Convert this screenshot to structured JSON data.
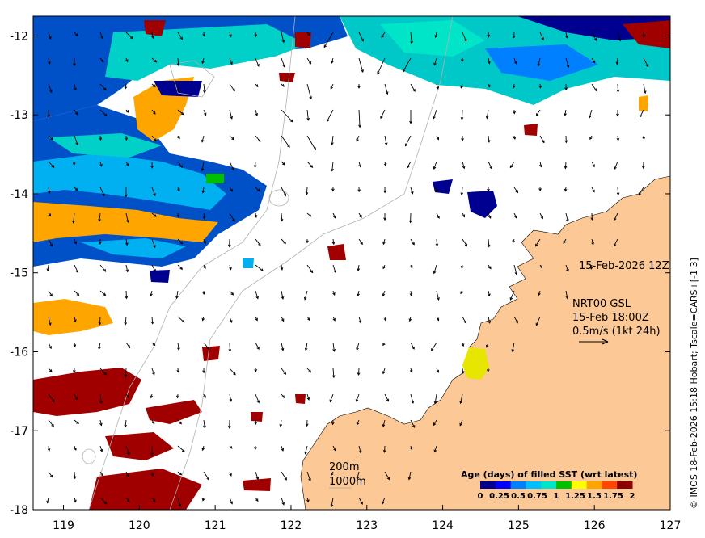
{
  "map": {
    "title_timestamp": "15-Feb-2026 12Z",
    "product": "NRT00 GSL",
    "product_time": "15-Feb 18:00Z",
    "vector_scale": "0.5m/s (1kt 24h)",
    "isobath_200": "200m",
    "isobath_1000": "1000m",
    "side_credit": "© IMOS 18-Feb-2026 15:18 Hobart; Tscale=CARS+[-1 3]",
    "lon_ticks": [
      "119",
      "120",
      "121",
      "122",
      "123",
      "124",
      "125",
      "126",
      "127"
    ],
    "lat_ticks": [
      "-12",
      "-13",
      "-14",
      "-15",
      "-16",
      "-17",
      "-18"
    ],
    "lon_range": [
      118.6,
      127.0
    ],
    "lat_range": [
      -11.75,
      -18.0
    ]
  },
  "legend": {
    "title": "Age (days) of filled SST (wrt latest)",
    "tick_labels": [
      "0",
      "0.25",
      "0.5",
      "0.75",
      "1",
      "1.25",
      "1.5",
      "1.75",
      "2"
    ],
    "colors": [
      "#00008b",
      "#0000ff",
      "#0080ff",
      "#00bfff",
      "#00e5c8",
      "#00c000",
      "#ffff00",
      "#ffa500",
      "#ff4500",
      "#8b0000"
    ]
  },
  "colors": {
    "land": "#fcc896",
    "deep_blue": "#0050c8",
    "mid_blue": "#00b0f0",
    "cyan": "#00d0c8",
    "orange": "#ffa500",
    "dark_red": "#a00000",
    "navy": "#000090"
  }
}
